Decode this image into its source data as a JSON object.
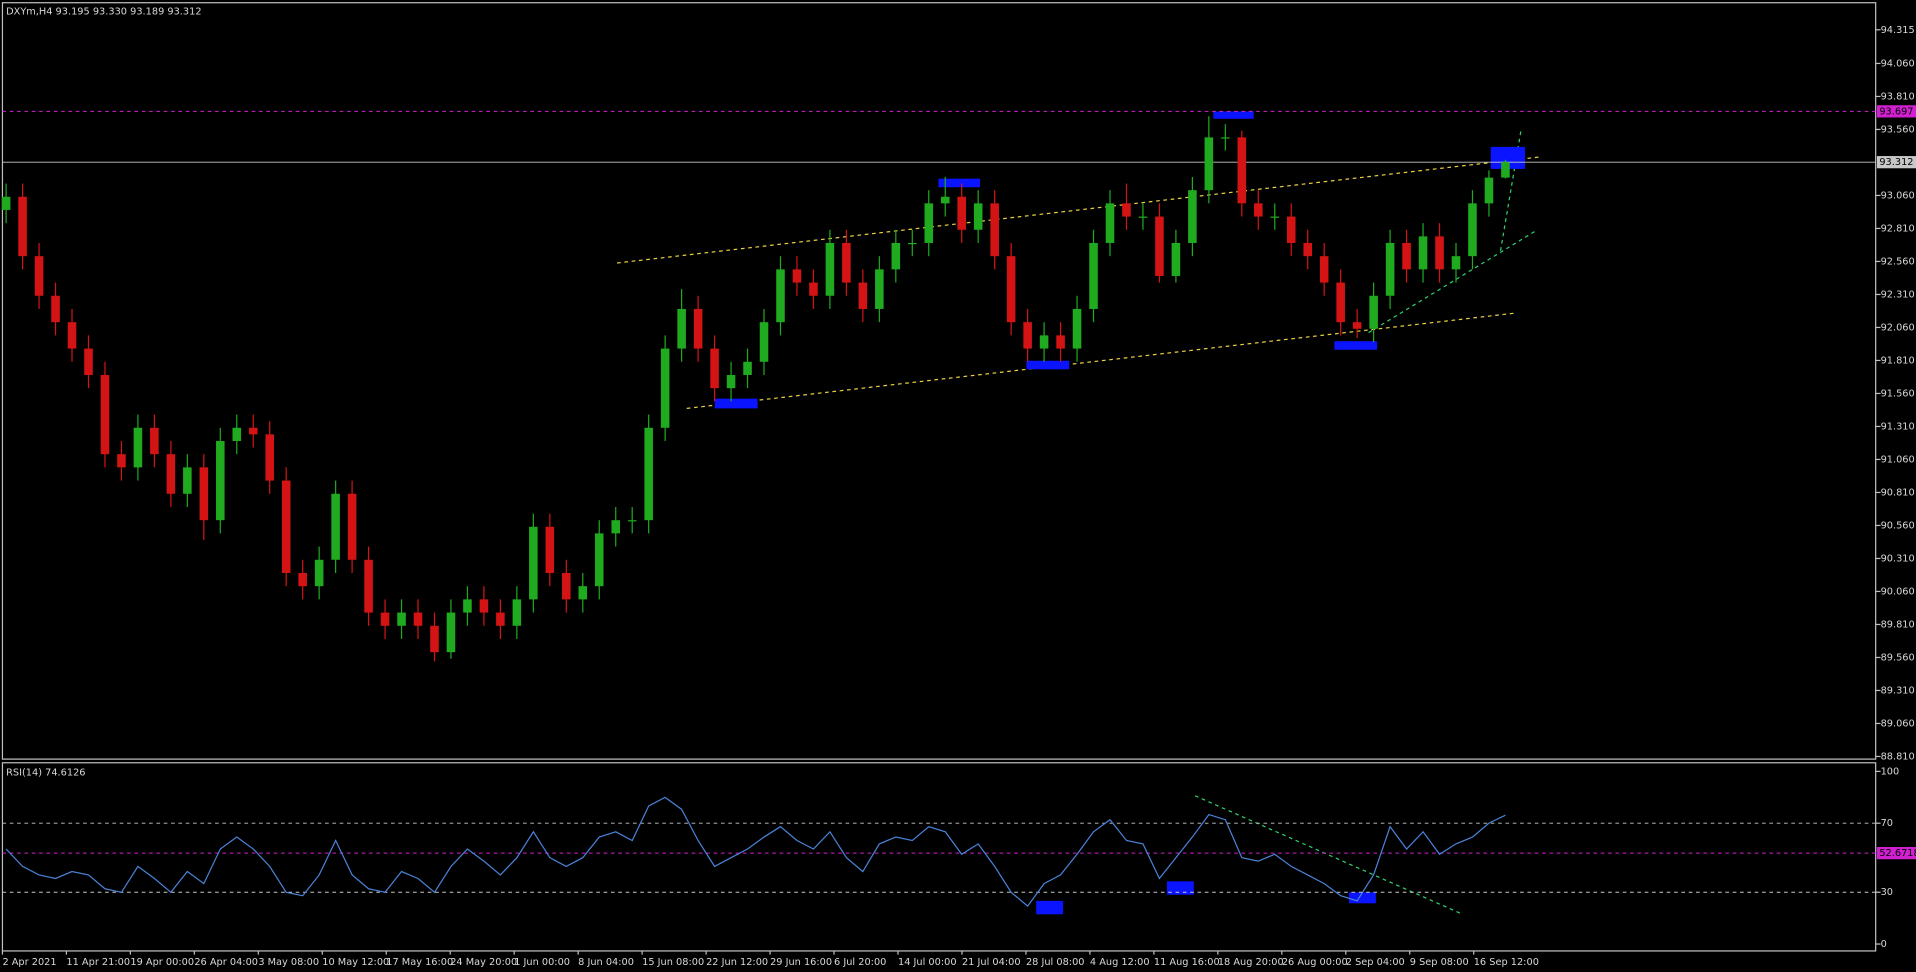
{
  "chart_data": {
    "type": "candlestick",
    "title": "DXYm,H4  93.195 93.330 93.189 93.312",
    "up_color": "#1faa1f",
    "down_color": "#d41414",
    "open": [
      92.95,
      93.05,
      92.6,
      92.3,
      92.1,
      91.9,
      91.7,
      91.1,
      91.0,
      91.3,
      91.1,
      90.8,
      91.0,
      90.6,
      91.2,
      91.3,
      91.25,
      90.9,
      90.2,
      90.1,
      90.3,
      90.8,
      90.3,
      89.9,
      89.8,
      89.9,
      89.8,
      89.6,
      89.9,
      90.0,
      89.9,
      89.8,
      90.0,
      90.55,
      90.2,
      90.0,
      90.1,
      90.5,
      90.6,
      90.6,
      91.3,
      91.9,
      92.2,
      91.9,
      91.6,
      91.7,
      91.8,
      92.1,
      92.5,
      92.4,
      92.3,
      92.7,
      92.4,
      92.2,
      92.5,
      92.7,
      92.7,
      93.0,
      93.05,
      92.8,
      93.0,
      92.6,
      92.1,
      91.9,
      92.0,
      91.9,
      92.2,
      92.7,
      93.0,
      92.9,
      92.9,
      92.45,
      92.7,
      93.1,
      93.5,
      93.5,
      93.0,
      92.9,
      92.9,
      92.7,
      92.6,
      92.4,
      92.1,
      92.05,
      92.3,
      92.7,
      92.5,
      92.75,
      92.5,
      92.6,
      93.0,
      93.195
    ],
    "high": [
      93.15,
      93.15,
      92.7,
      92.4,
      92.2,
      92.0,
      91.8,
      91.2,
      91.4,
      91.4,
      91.2,
      91.1,
      91.1,
      91.3,
      91.4,
      91.4,
      91.35,
      91.0,
      90.3,
      90.4,
      90.9,
      90.9,
      90.4,
      90.0,
      90.0,
      90.0,
      89.9,
      90.0,
      90.1,
      90.1,
      90.0,
      90.1,
      90.65,
      90.65,
      90.3,
      90.2,
      90.6,
      90.7,
      90.7,
      91.4,
      92.0,
      92.35,
      92.3,
      92.0,
      91.8,
      91.9,
      92.2,
      92.6,
      92.6,
      92.5,
      92.8,
      92.8,
      92.5,
      92.6,
      92.8,
      92.8,
      93.1,
      93.2,
      93.15,
      93.1,
      93.1,
      92.7,
      92.2,
      92.1,
      92.1,
      92.3,
      92.8,
      93.1,
      93.15,
      93.0,
      93.0,
      92.8,
      93.2,
      93.66,
      93.6,
      93.55,
      93.1,
      93.0,
      93.0,
      92.8,
      92.7,
      92.5,
      92.2,
      92.4,
      92.8,
      92.8,
      92.85,
      92.85,
      92.7,
      93.1,
      93.25,
      93.33
    ],
    "low": [
      92.85,
      92.5,
      92.2,
      92.0,
      91.8,
      91.6,
      91.0,
      90.9,
      90.9,
      91.0,
      90.7,
      90.7,
      90.45,
      90.5,
      91.1,
      91.15,
      90.8,
      90.1,
      90.0,
      90.0,
      90.2,
      90.2,
      89.8,
      89.7,
      89.7,
      89.7,
      89.53,
      89.55,
      89.8,
      89.8,
      89.7,
      89.7,
      89.9,
      90.1,
      89.9,
      89.9,
      90.0,
      90.4,
      90.5,
      90.5,
      91.2,
      91.8,
      91.8,
      91.5,
      91.5,
      91.6,
      91.7,
      92.0,
      92.3,
      92.2,
      92.2,
      92.3,
      92.1,
      92.1,
      92.4,
      92.6,
      92.6,
      92.9,
      92.7,
      92.7,
      92.5,
      92.0,
      91.8,
      91.8,
      91.8,
      91.8,
      92.1,
      92.6,
      92.8,
      92.8,
      92.4,
      92.4,
      92.6,
      93.0,
      93.4,
      92.9,
      92.8,
      92.8,
      92.6,
      92.5,
      92.3,
      92.0,
      91.98,
      91.95,
      92.2,
      92.4,
      92.4,
      92.4,
      92.4,
      92.5,
      92.9,
      93.189
    ],
    "close": [
      93.05,
      92.6,
      92.3,
      92.1,
      91.9,
      91.7,
      91.1,
      91.0,
      91.3,
      91.1,
      90.8,
      91.0,
      90.6,
      91.2,
      91.3,
      91.25,
      90.9,
      90.2,
      90.1,
      90.3,
      90.8,
      90.3,
      89.9,
      89.8,
      89.9,
      89.8,
      89.6,
      89.9,
      90.0,
      89.9,
      89.8,
      90.0,
      90.55,
      90.2,
      90.0,
      90.1,
      90.5,
      90.6,
      90.6,
      91.3,
      91.9,
      92.2,
      91.9,
      91.6,
      91.7,
      91.8,
      92.1,
      92.5,
      92.4,
      92.3,
      92.7,
      92.4,
      92.2,
      92.5,
      92.7,
      92.7,
      93.0,
      93.05,
      92.8,
      93.0,
      92.6,
      92.1,
      91.9,
      92.0,
      91.9,
      92.2,
      92.7,
      93.0,
      92.9,
      92.9,
      92.45,
      92.7,
      93.1,
      93.5,
      93.5,
      93.0,
      92.9,
      92.9,
      92.7,
      92.6,
      92.4,
      92.1,
      92.05,
      92.3,
      92.7,
      92.5,
      92.75,
      92.5,
      92.6,
      93.0,
      93.195,
      93.312
    ],
    "ylim": [
      88.79,
      94.52
    ],
    "yticks": [
      94.315,
      {
        "value": 94.06,
        "label": "94.060"
      },
      {
        "value": 93.81,
        "label": "93.810"
      },
      {
        "value": 93.56,
        "label": "93.560"
      },
      {
        "value": 93.06,
        "label": "93.060"
      },
      {
        "value": 92.81,
        "label": "92.810"
      },
      {
        "value": 92.56,
        "label": "92.560"
      },
      {
        "value": 92.31,
        "label": "92.310"
      },
      {
        "value": 92.06,
        "label": "92.060"
      },
      {
        "value": 91.81,
        "label": "91.810"
      },
      {
        "value": 91.56,
        "label": "91.560"
      },
      {
        "value": 91.31,
        "label": "91.310"
      },
      {
        "value": 91.06,
        "label": "91.060"
      },
      {
        "value": 90.81,
        "label": "90.810"
      },
      {
        "value": 90.56,
        "label": "90.560"
      },
      {
        "value": 90.31,
        "label": "90.310"
      },
      {
        "value": 90.06,
        "label": "90.060"
      },
      {
        "value": 89.81,
        "label": "89.810"
      },
      {
        "value": 89.56,
        "label": "89.560"
      },
      {
        "value": 89.31,
        "label": "89.310"
      },
      {
        "value": 89.06,
        "label": "89.060"
      },
      {
        "value": 88.81,
        "label": "88.810"
      }
    ],
    "levels": [
      {
        "value": 93.697,
        "color": "#d020d0",
        "style": "dashed"
      },
      {
        "value": 93.312,
        "color": "#c8c8c8",
        "style": "solid"
      }
    ],
    "x_labels": [
      "2 Apr 2021",
      "11 Apr 21:00",
      "19 Apr 00:00",
      "26 Apr 04:00",
      "3 May 08:00",
      "10 May 12:00",
      "17 May 16:00",
      "24 May 20:00",
      "1 Jun 00:00",
      "8 Jun 04:00",
      "15 Jun 08:00",
      "22 Jun 12:00",
      "29 Jun 16:00",
      "6 Jul 20:00",
      "14 Jul 00:00",
      "21 Jul 04:00",
      "28 Jul 08:00",
      "4 Aug 12:00",
      "11 Aug 16:00",
      "18 Aug 20:00",
      "26 Aug 00:00",
      "2 Sep 04:00",
      "9 Sep 08:00",
      "16 Sep 12:00"
    ],
    "indicator": {
      "title": "RSI(14) 74.6126",
      "color": "#4a82d8",
      "values": [
        55,
        45,
        40,
        38,
        42,
        40,
        32,
        30,
        45,
        38,
        30,
        42,
        35,
        55,
        62,
        55,
        45,
        30,
        28,
        40,
        60,
        40,
        32,
        30,
        42,
        38,
        30,
        45,
        55,
        48,
        40,
        50,
        65,
        50,
        45,
        50,
        62,
        65,
        60,
        80,
        85,
        78,
        60,
        45,
        50,
        55,
        62,
        68,
        60,
        55,
        65,
        50,
        42,
        58,
        62,
        60,
        68,
        65,
        52,
        58,
        45,
        30,
        22,
        35,
        40,
        52,
        65,
        72,
        60,
        58,
        38,
        50,
        62,
        75,
        72,
        50,
        48,
        52,
        45,
        40,
        35,
        28,
        25,
        40,
        68,
        55,
        65,
        52,
        58,
        62,
        70,
        74.6126
      ],
      "ylim": [
        -4,
        105
      ],
      "yticks": [
        100,
        70,
        30,
        0
      ],
      "levels": [
        {
          "value": 70,
          "color": "#c8c8c8",
          "style": "dashed",
          "boxed": false
        },
        {
          "value": 30,
          "color": "#c8c8c8",
          "style": "dashed",
          "boxed": false
        },
        {
          "value": 52.6718,
          "color": "#d020d0",
          "style": "dashed",
          "boxed": true
        }
      ]
    }
  }
}
